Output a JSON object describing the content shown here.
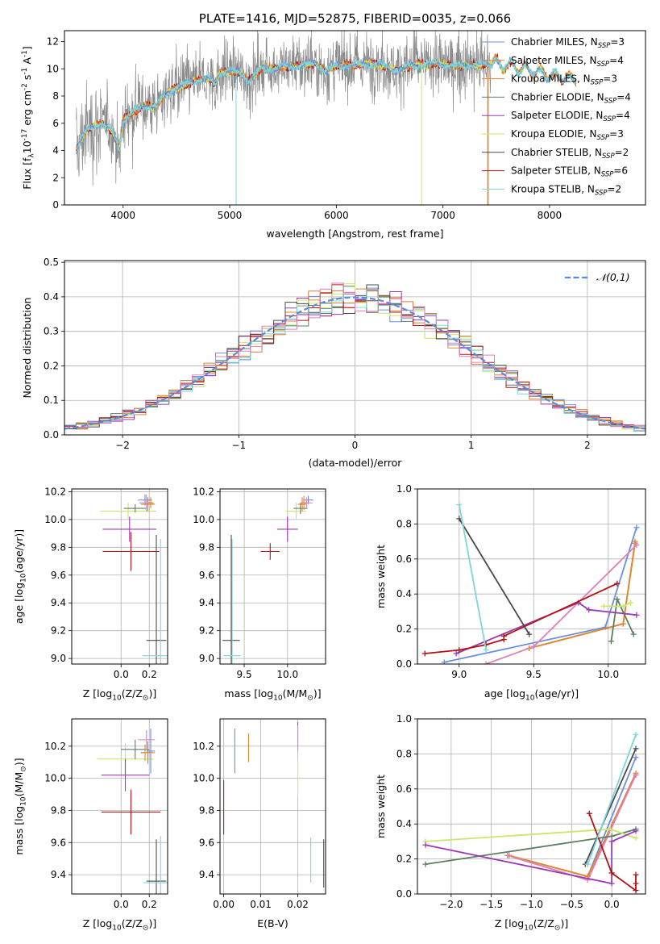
{
  "colors": {
    "Chabrier MILES": "#6a8fdc",
    "Salpeter MILES": "#e07830",
    "Kroupa MILES": "#db8a2e",
    "Chabrier ELODIE": "#5a7f63",
    "Salpeter ELODIE": "#9d3ab3",
    "Kroupa ELODIE": "#cbe66a",
    "Chabrier STELIB": "#4a4a4a",
    "Salpeter STELIB": "#b01414",
    "Kroupa STELIB": "#7dd6dc",
    "pink": "#e27fb9",
    "data": "#8a8a8a",
    "gaussian": "#5b8ad8"
  },
  "chart_data": [
    {
      "id": "spectrum",
      "type": "line",
      "title": "PLATE=1416, MJD=52875, FIBERID=0035, z=0.066",
      "xlabel": "wavelength [Angstrom, rest frame]",
      "ylabel": "Flux [f$_\\lambda$10$^{-17}$ erg cm$^{-2}$ s$^{-1}$ A$^{-1}$]",
      "xlim": [
        3450,
        8900
      ],
      "ylim": [
        0,
        12.8
      ],
      "xticks": [
        "4000",
        "5000",
        "6000",
        "7000",
        "8000"
      ],
      "yticks": [
        "0",
        "2",
        "4",
        "6",
        "8",
        "10",
        "12"
      ],
      "legend": [
        {
          "label": "Chabrier MILES, N",
          "sub": "SSP",
          "post": "=3",
          "key": "Chabrier MILES"
        },
        {
          "label": "Salpeter MILES, N",
          "sub": "SSP",
          "post": "=4",
          "key": "Salpeter MILES"
        },
        {
          "label": "Kroupa MILES, N",
          "sub": "SSP",
          "post": "=3",
          "key": "Kroupa MILES"
        },
        {
          "label": "Chabrier ELODIE, N",
          "sub": "SSP",
          "post": "=4",
          "key": "Chabrier ELODIE"
        },
        {
          "label": "Salpeter ELODIE, N",
          "sub": "SSP",
          "post": "=4",
          "key": "Salpeter ELODIE"
        },
        {
          "label": "Kroupa ELODIE, N",
          "sub": "SSP",
          "post": "=3",
          "key": "Kroupa ELODIE"
        },
        {
          "label": "Chabrier STELIB, N",
          "sub": "SSP",
          "post": "=2",
          "key": "Chabrier STELIB"
        },
        {
          "label": "Salpeter STELIB, N",
          "sub": "SSP",
          "post": "=6",
          "key": "Salpeter STELIB"
        },
        {
          "label": "Kroupa STELIB, N",
          "sub": "SSP",
          "post": "=2",
          "key": "Kroupa STELIB"
        }
      ],
      "continuum": [
        [
          3560,
          4.0
        ],
        [
          3650,
          5.5
        ],
        [
          3800,
          6.0
        ],
        [
          3900,
          5.4
        ],
        [
          3970,
          4.0
        ],
        [
          4000,
          6.3
        ],
        [
          4100,
          6.9
        ],
        [
          4200,
          7.3
        ],
        [
          4300,
          7.2
        ],
        [
          4400,
          8.2
        ],
        [
          4500,
          8.6
        ],
        [
          4600,
          8.9
        ],
        [
          4700,
          9.1
        ],
        [
          4800,
          9.3
        ],
        [
          4860,
          8.9
        ],
        [
          4900,
          9.6
        ],
        [
          5000,
          9.9
        ],
        [
          5100,
          9.7
        ],
        [
          5180,
          9.1
        ],
        [
          5300,
          10.1
        ],
        [
          5400,
          10.0
        ],
        [
          5500,
          10.2
        ],
        [
          5600,
          10.1
        ],
        [
          5700,
          10.3
        ],
        [
          5800,
          10.4
        ],
        [
          5890,
          9.8
        ],
        [
          6000,
          10.2
        ],
        [
          6200,
          10.3
        ],
        [
          6400,
          10.4
        ],
        [
          6560,
          9.9
        ],
        [
          6700,
          10.2
        ],
        [
          6900,
          10.4
        ],
        [
          7100,
          10.2
        ],
        [
          7300,
          10.3
        ],
        [
          7500,
          10.4
        ],
        [
          7700,
          10.1
        ],
        [
          7900,
          9.7
        ],
        [
          8100,
          9.4
        ],
        [
          8250,
          9.2
        ]
      ],
      "model_end": 8250,
      "data_end": 7450,
      "data_noise": 1.6,
      "spikes": [
        {
          "key": "Kroupa STELIB",
          "x": 5060,
          "from": 9.9,
          "to": 0
        },
        {
          "key": "Kroupa STELIB",
          "x": 3975,
          "from": 5.5,
          "to": 2.4
        },
        {
          "key": "Kroupa ELODIE",
          "x": 6800,
          "from": 10.3,
          "to": 0
        },
        {
          "key": "Salpeter MILES",
          "x": 7420,
          "from": 10.2,
          "to": 0
        },
        {
          "key": "Kroupa MILES",
          "x": 7425,
          "from": 10.2,
          "to": 0
        }
      ]
    },
    {
      "id": "residuals",
      "type": "line",
      "xlabel": "(data-model)/error",
      "ylabel": "Normed distribution",
      "xlim": [
        -2.5,
        2.5
      ],
      "ylim": [
        0,
        0.505
      ],
      "xticks": [
        "−2",
        "−1",
        "0",
        "1",
        "2"
      ],
      "yticks": [
        "0.0",
        "0.1",
        "0.2",
        "0.3",
        "0.4",
        "0.5"
      ],
      "legend_label": "𝒩(0,1)",
      "bin_width": 0.1
    },
    {
      "id": "age_vs_Z",
      "type": "scatter",
      "xlabel": "Z [log$_{10}$(Z/Z$_\\odot$)]",
      "ylabel": "age  [log$_{10}$(age/yr)]",
      "xlim": [
        -0.35,
        0.33
      ],
      "ylim": [
        8.96,
        10.22
      ],
      "xticks": [
        "0.0",
        "0.2"
      ],
      "yticks": [
        "9.0",
        "9.2",
        "9.4",
        "9.6",
        "9.8",
        "10.0",
        "10.2"
      ],
      "points": [
        {
          "key": "Kroupa ELODIE",
          "x": 0.05,
          "y": 10.06,
          "xe": 0.2,
          "ye": 0.06
        },
        {
          "key": "Chabrier ELODIE",
          "x": 0.1,
          "y": 10.08,
          "xe": 0.08,
          "ye": 0.03
        },
        {
          "key": "Salpeter ELODIE",
          "x": 0.06,
          "y": 9.93,
          "xe": 0.19,
          "ye": 0.09
        },
        {
          "key": "Salpeter STELIB",
          "x": 0.07,
          "y": 9.77,
          "xe": 0.2,
          "ye": 0.14
        },
        {
          "key": "Chabrier MILES",
          "x": 0.17,
          "y": 10.14,
          "xe": 0.05,
          "ye": 0.04
        },
        {
          "key": "Salpeter MILES",
          "x": 0.19,
          "y": 10.11,
          "xe": 0.05,
          "ye": 0.05
        },
        {
          "key": "pink",
          "x": 0.18,
          "y": 10.12,
          "xe": 0.05,
          "ye": 0.06
        },
        {
          "key": "Kroupa MILES",
          "x": 0.21,
          "y": 10.12,
          "xe": 0.02,
          "ye": 0.04
        },
        {
          "key": "Chabrier STELIB",
          "x": 0.25,
          "y": 9.13,
          "xe": 0.07,
          "ye": 0.76
        },
        {
          "key": "Kroupa STELIB",
          "x": 0.28,
          "y": 9.02,
          "xe": 0.13,
          "ye": 0.84
        }
      ]
    },
    {
      "id": "age_vs_mass",
      "type": "scatter",
      "xlabel": "mass [log$_{10}$(M/M$_\\odot$)]",
      "xlim": [
        9.22,
        10.44
      ],
      "ylim": [
        8.96,
        10.22
      ],
      "xticks": [
        "9.5",
        "10.0"
      ],
      "yticks": [
        "9.0",
        "9.2",
        "9.4",
        "9.6",
        "9.8",
        "10.0",
        "10.2"
      ],
      "points": [
        {
          "key": "Kroupa ELODIE",
          "x": 10.1,
          "y": 10.06,
          "xe": 0.12,
          "ye": 0.06
        },
        {
          "key": "Chabrier ELODIE",
          "x": 10.15,
          "y": 10.08,
          "xe": 0.08,
          "ye": 0.04
        },
        {
          "key": "Salpeter ELODIE",
          "x": 10.0,
          "y": 9.93,
          "xe": 0.12,
          "ye": 0.09
        },
        {
          "key": "Salpeter STELIB",
          "x": 9.8,
          "y": 9.77,
          "xe": 0.11,
          "ye": 0.06
        },
        {
          "key": "Chabrier MILES",
          "x": 10.24,
          "y": 10.14,
          "xe": 0.06,
          "ye": 0.03
        },
        {
          "key": "Salpeter MILES",
          "x": 10.17,
          "y": 10.11,
          "xe": 0.05,
          "ye": 0.05
        },
        {
          "key": "pink",
          "x": 10.22,
          "y": 10.12,
          "xe": 0.07,
          "ye": 0.04
        },
        {
          "key": "Kroupa MILES",
          "x": 10.19,
          "y": 10.12,
          "xe": 0.03,
          "ye": 0.05
        },
        {
          "key": "Chabrier STELIB",
          "x": 9.35,
          "y": 9.13,
          "xe": 0.1,
          "ye": 0.76
        },
        {
          "key": "Kroupa STELIB",
          "x": 9.36,
          "y": 9.02,
          "xe": 0.1,
          "ye": 0.84
        }
      ]
    },
    {
      "id": "weight_vs_age",
      "type": "line",
      "xlabel": "age  [log$_{10}$(age/yr)]",
      "ylabel": "mass weight",
      "xlim": [
        8.72,
        10.25
      ],
      "ylim": [
        0,
        1.0
      ],
      "xticks": [
        "9.0",
        "9.5",
        "10.0"
      ],
      "yticks": [
        "0.0",
        "0.2",
        "0.4",
        "0.6",
        "0.8",
        "1.0"
      ],
      "series": [
        {
          "key": "Chabrier MILES",
          "points": [
            [
              8.9,
              0.01
            ],
            [
              9.98,
              0.21
            ],
            [
              10.19,
              0.78
            ]
          ]
        },
        {
          "key": "Salpeter MILES",
          "points": [
            [
              9.47,
              0.09
            ],
            [
              10.1,
              0.23
            ],
            [
              10.18,
              0.69
            ]
          ]
        },
        {
          "key": "Kroupa MILES",
          "points": [
            [
              9.47,
              0.09
            ],
            [
              10.1,
              0.23
            ],
            [
              10.18,
              0.7
            ]
          ]
        },
        {
          "key": "pink",
          "points": [
            [
              9.18,
              0.0
            ],
            [
              9.5,
              0.1
            ],
            [
              10.19,
              0.68
            ]
          ]
        },
        {
          "key": "Chabrier ELODIE",
          "points": [
            [
              10.02,
              0.13
            ],
            [
              10.06,
              0.37
            ],
            [
              10.17,
              0.17
            ]
          ]
        },
        {
          "key": "Kroupa ELODIE",
          "points": [
            [
              9.97,
              0.33
            ],
            [
              10.1,
              0.33
            ],
            [
              10.15,
              0.35
            ]
          ]
        },
        {
          "key": "Salpeter ELODIE",
          "points": [
            [
              8.98,
              0.06
            ],
            [
              9.8,
              0.35
            ],
            [
              9.87,
              0.31
            ],
            [
              10.19,
              0.28
            ]
          ]
        },
        {
          "key": "Salpeter STELIB",
          "points": [
            [
              8.77,
              0.06
            ],
            [
              9.0,
              0.08
            ],
            [
              9.18,
              0.11
            ],
            [
              9.3,
              0.14
            ],
            [
              9.3,
              0.16
            ],
            [
              10.06,
              0.46
            ]
          ]
        },
        {
          "key": "Chabrier STELIB",
          "points": [
            [
              9.0,
              0.83
            ],
            [
              9.47,
              0.17
            ]
          ]
        },
        {
          "key": "Kroupa STELIB",
          "points": [
            [
              9.0,
              0.91
            ],
            [
              9.18,
              0.08
            ]
          ]
        }
      ]
    },
    {
      "id": "mass_vs_Z",
      "type": "scatter",
      "xlabel": "Z [log$_{10}$(Z/Z$_\\odot$)]",
      "ylabel": "mass [log$_{10}$(M/M$_\\odot$)]",
      "xlim": [
        -0.35,
        0.33
      ],
      "ylim": [
        9.28,
        10.37
      ],
      "xticks": [
        "0.0",
        "0.2"
      ],
      "yticks": [
        "9.4",
        "9.6",
        "9.8",
        "10.0",
        "10.2"
      ],
      "points": [
        {
          "key": "Kroupa ELODIE",
          "x": 0.03,
          "y": 10.12,
          "xe": 0.2,
          "ye": 0.1
        },
        {
          "key": "Chabrier ELODIE",
          "x": 0.1,
          "y": 10.18,
          "xe": 0.1,
          "ye": 0.06
        },
        {
          "key": "Salpeter ELODIE",
          "x": 0.03,
          "y": 10.02,
          "xe": 0.17,
          "ye": 0.1
        },
        {
          "key": "Salpeter STELIB",
          "x": 0.07,
          "y": 9.79,
          "xe": 0.21,
          "ye": 0.14
        },
        {
          "key": "Chabrier MILES",
          "x": 0.21,
          "y": 10.17,
          "xe": 0.03,
          "ye": 0.14
        },
        {
          "key": "Salpeter MILES",
          "x": 0.19,
          "y": 10.16,
          "xe": 0.05,
          "ye": 0.07
        },
        {
          "key": "pink",
          "x": 0.18,
          "y": 10.24,
          "xe": 0.06,
          "ye": 0.06
        },
        {
          "key": "Kroupa MILES",
          "x": 0.17,
          "y": 10.16,
          "xe": 0.03,
          "ye": 0.05
        },
        {
          "key": "Chabrier STELIB",
          "x": 0.25,
          "y": 9.36,
          "xe": 0.07,
          "ye": 0.26
        },
        {
          "key": "Kroupa STELIB",
          "x": 0.28,
          "y": 9.35,
          "xe": 0.12,
          "ye": 0.29
        }
      ]
    },
    {
      "id": "mass_vs_ebv",
      "type": "scatter",
      "xlabel": "E(B-V)",
      "xlim": [
        -0.001,
        0.0275
      ],
      "ylim": [
        9.28,
        10.37
      ],
      "xticks": [
        "0.00",
        "0.01",
        "0.02"
      ],
      "yticks": [
        "9.4",
        "9.6",
        "9.8",
        "10.0",
        "10.2"
      ],
      "points": [
        {
          "key": "Salpeter STELIB",
          "x": 0.0,
          "y": 9.82,
          "xe": 0,
          "ye": 0.17
        },
        {
          "key": "Chabrier MILES",
          "x": 0.003,
          "y": 10.17,
          "xe": 0,
          "ye": 0.14
        },
        {
          "key": "Kroupa MILES",
          "x": 0.0067,
          "y": 10.19,
          "xe": 0,
          "ye": 0.09
        },
        {
          "key": "Kroupa ELODIE",
          "x": 0.02,
          "y": 10.0,
          "xe": 0,
          "ye": 0.12
        },
        {
          "key": "Salpeter ELODIE",
          "x": 0.02,
          "y": 10.27,
          "xe": 0,
          "ye": 0.08
        },
        {
          "key": "pink",
          "x": 0.02,
          "y": 10.25,
          "xe": 0,
          "ye": 0.08
        },
        {
          "key": "Kroupa STELIB",
          "x": 0.0235,
          "y": 9.49,
          "xe": 0,
          "ye": 0.14
        },
        {
          "key": "Chabrier STELIB",
          "x": 0.027,
          "y": 9.47,
          "xe": 0,
          "ye": 0.15
        }
      ]
    },
    {
      "id": "weight_vs_Z",
      "type": "line",
      "xlabel": "Z [log$_{10}$(Z/Z$_\\odot$)]",
      "ylabel": "mass weight",
      "xlim": [
        -2.42,
        0.42
      ],
      "ylim": [
        0,
        1.0
      ],
      "xticks": [
        "−2.0",
        "−1.5",
        "−1.0",
        "−0.5",
        "0.0"
      ],
      "yticks": [
        "0.0",
        "0.2",
        "0.4",
        "0.6",
        "0.8",
        "1.0"
      ],
      "series": [
        {
          "key": "Chabrier MILES",
          "points": [
            [
              -0.3,
              0.1
            ],
            [
              0.3,
              0.78
            ]
          ]
        },
        {
          "key": "Salpeter MILES",
          "points": [
            [
              -1.28,
              0.22
            ],
            [
              -0.3,
              0.1
            ],
            [
              0.3,
              0.69
            ]
          ]
        },
        {
          "key": "Kroupa MILES",
          "points": [
            [
              -1.28,
              0.22
            ],
            [
              -0.3,
              0.1
            ],
            [
              0.3,
              0.68
            ]
          ]
        },
        {
          "key": "pink",
          "points": [
            [
              -1.3,
              0.22
            ],
            [
              -0.3,
              0.08
            ],
            [
              0.3,
              0.68
            ]
          ]
        },
        {
          "key": "Chabrier ELODIE",
          "points": [
            [
              -2.32,
              0.17
            ],
            [
              0.0,
              0.33
            ],
            [
              0.3,
              0.37
            ]
          ]
        },
        {
          "key": "Kroupa ELODIE",
          "points": [
            [
              -2.32,
              0.3
            ],
            [
              -0.02,
              0.37
            ],
            [
              0.3,
              0.32
            ]
          ]
        },
        {
          "key": "Salpeter ELODIE",
          "points": [
            [
              -2.32,
              0.28
            ],
            [
              0.0,
              0.06
            ],
            [
              0.0,
              0.3
            ],
            [
              0.3,
              0.36
            ]
          ]
        },
        {
          "key": "Salpeter STELIB",
          "points": [
            [
              -0.28,
              0.46
            ],
            [
              0.0,
              0.12
            ],
            [
              0.3,
              0.02
            ],
            [
              0.3,
              0.06
            ],
            [
              0.3,
              0.11
            ]
          ]
        },
        {
          "key": "Chabrier STELIB",
          "points": [
            [
              -0.33,
              0.17
            ],
            [
              0.3,
              0.83
            ]
          ]
        },
        {
          "key": "Kroupa STELIB",
          "points": [
            [
              -0.3,
              0.17
            ],
            [
              0.3,
              0.91
            ]
          ]
        }
      ]
    }
  ]
}
